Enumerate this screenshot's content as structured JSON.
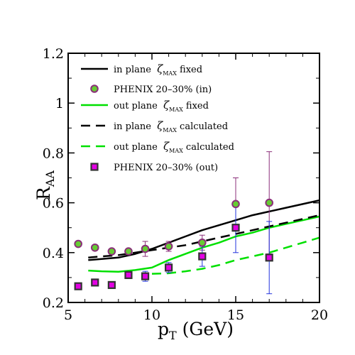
{
  "chart_data": {
    "type": "line",
    "xlabel": "p",
    "xlabel_sub": "T",
    "xlabel_unit": " (GeV)",
    "ylabel": "R",
    "ylabel_sub": "AA",
    "xlim": [
      5,
      20
    ],
    "ylim": [
      0.2,
      1.2
    ],
    "xticks": [
      "5",
      "10",
      "15",
      "20"
    ],
    "yticks": [
      "0.2",
      "0.4",
      "0.6",
      "0.8",
      "1",
      "1.2"
    ],
    "grid": false,
    "legend_position": "top-left",
    "legend": [
      {
        "pre": "in plane ",
        "sym": "ζ",
        "sub": "MAX",
        "post": " fixed",
        "style": "solid-black"
      },
      {
        "pre": "PHENIX 20–30% (in)",
        "sym": "",
        "sub": "",
        "post": "",
        "style": "circle"
      },
      {
        "pre": "out plane ",
        "sym": "ζ",
        "sub": "MAX",
        "post": " fixed",
        "style": "solid-green"
      },
      {
        "pre": "in plane ",
        "sym": "ζ",
        "sub": "MAX",
        "post": " calculated",
        "style": "dashed-black"
      },
      {
        "pre": "out plane ",
        "sym": "ζ",
        "sub": "MAX",
        "post": " calculated",
        "style": "dashed-green"
      },
      {
        "pre": "PHENIX 20–30% (out)",
        "sym": "",
        "sub": "",
        "post": "",
        "style": "square"
      }
    ],
    "series": [
      {
        "key": "in_fixed",
        "color": "#000000",
        "dash": false,
        "x": [
          6.2,
          8,
          9,
          10,
          11,
          12,
          13,
          14,
          15,
          16,
          17,
          18,
          19,
          20
        ],
        "y": [
          0.37,
          0.38,
          0.395,
          0.415,
          0.44,
          0.465,
          0.49,
          0.51,
          0.53,
          0.55,
          0.565,
          0.58,
          0.595,
          0.61
        ]
      },
      {
        "key": "out_fixed",
        "color": "#00e000",
        "dash": false,
        "x": [
          6.2,
          7,
          8,
          9,
          10,
          11,
          12,
          13,
          14,
          15,
          16,
          17,
          18,
          19,
          20
        ],
        "y": [
          0.328,
          0.325,
          0.323,
          0.33,
          0.34,
          0.37,
          0.395,
          0.42,
          0.44,
          0.465,
          0.48,
          0.5,
          0.515,
          0.53,
          0.545
        ]
      },
      {
        "key": "in_calc",
        "color": "#000000",
        "dash": true,
        "x": [
          6.2,
          7,
          8,
          9,
          10,
          11,
          12,
          13,
          14,
          15,
          16,
          17,
          18,
          19,
          20
        ],
        "y": [
          0.38,
          0.385,
          0.39,
          0.4,
          0.41,
          0.42,
          0.43,
          0.445,
          0.46,
          0.475,
          0.49,
          0.505,
          0.52,
          0.535,
          0.55
        ]
      },
      {
        "key": "out_calc",
        "color": "#00e000",
        "dash": true,
        "x": [
          10,
          11,
          12,
          13,
          14,
          15,
          16,
          17,
          18,
          19,
          20
        ],
        "y": [
          0.315,
          0.317,
          0.325,
          0.335,
          0.35,
          0.37,
          0.385,
          0.4,
          0.42,
          0.44,
          0.46
        ]
      }
    ],
    "points_in": {
      "name": "PHENIX 20–30% (in)",
      "x": [
        5.6,
        6.6,
        7.6,
        8.6,
        9.6,
        11,
        13,
        15,
        17
      ],
      "y": [
        0.435,
        0.42,
        0.405,
        0.405,
        0.415,
        0.425,
        0.44,
        0.595,
        0.6
      ],
      "err": [
        0,
        0,
        0,
        0.01,
        0.03,
        0.02,
        0.03,
        0.105,
        0.205
      ]
    },
    "points_out": {
      "name": "PHENIX 20–30% (out)",
      "x": [
        5.6,
        6.6,
        7.6,
        8.6,
        9.6,
        11,
        13,
        15,
        17
      ],
      "y": [
        0.265,
        0.28,
        0.27,
        0.31,
        0.305,
        0.34,
        0.385,
        0.5,
        0.38
      ],
      "err": [
        0,
        0,
        0,
        0.01,
        0.02,
        0.02,
        0.04,
        0.1,
        0.145
      ]
    },
    "colors": {
      "in_marker_fill": "#66cc33",
      "in_marker_edge": "#8b2f7a",
      "in_errorbar": "#8b2f7a",
      "out_marker_fill": "#e300e3",
      "out_marker_edge": "#333333",
      "out_errorbar": "#2233dd"
    }
  }
}
